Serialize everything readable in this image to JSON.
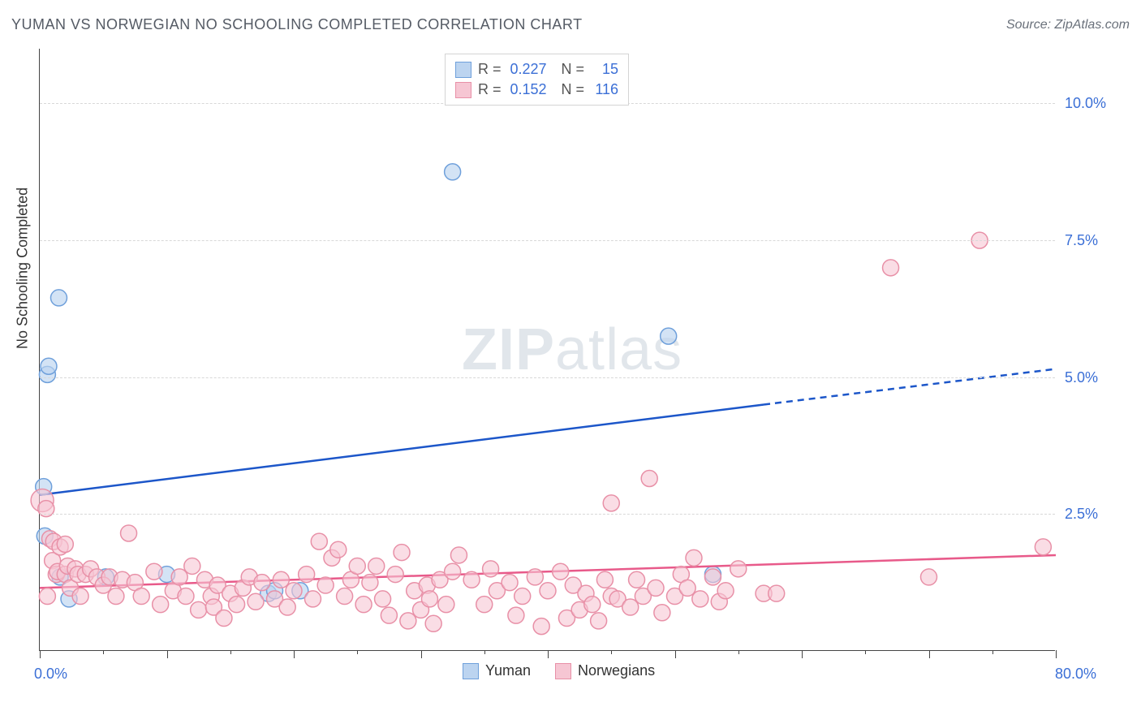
{
  "title": "YUMAN VS NORWEGIAN NO SCHOOLING COMPLETED CORRELATION CHART",
  "source": "Source: ZipAtlas.com",
  "y_axis_label": "No Schooling Completed",
  "watermark_a": "ZIP",
  "watermark_b": "atlas",
  "chart": {
    "type": "scatter",
    "xlim": [
      0,
      80
    ],
    "ylim": [
      0,
      11
    ],
    "x_label_min": "0.0%",
    "x_label_max": "80.0%",
    "y_grid": [
      {
        "value": 2.5,
        "label": "2.5%"
      },
      {
        "value": 5.0,
        "label": "5.0%"
      },
      {
        "value": 7.5,
        "label": "7.5%"
      },
      {
        "value": 10.0,
        "label": "10.0%"
      }
    ],
    "x_ticks": [
      0,
      5,
      10,
      15,
      20,
      25,
      30,
      35,
      40,
      45,
      50,
      55,
      60,
      65,
      70,
      75,
      80
    ],
    "x_major": [
      0,
      10,
      20,
      30,
      40,
      50,
      60,
      70,
      80
    ],
    "background_color": "#ffffff",
    "grid_color": "#d8d8d8",
    "axis_text_color": "#3b6fd6",
    "marker_radius": 10,
    "marker_stroke_width": 1.5,
    "trend_line_width": 2.5,
    "series": [
      {
        "name": "Yuman",
        "fill": "#bcd4f0",
        "stroke": "#6fa0db",
        "fill_opacity": 0.65,
        "trend_color": "#1c56c9",
        "trend": {
          "x1": 0,
          "y1": 2.85,
          "x2_solid": 57,
          "y2_solid": 4.5,
          "x2": 80,
          "y2": 5.15
        },
        "points": [
          {
            "x": 0.3,
            "y": 3.0
          },
          {
            "x": 0.4,
            "y": 2.1
          },
          {
            "x": 0.6,
            "y": 5.05
          },
          {
            "x": 0.7,
            "y": 5.2
          },
          {
            "x": 1.5,
            "y": 6.45
          },
          {
            "x": 1.6,
            "y": 1.35
          },
          {
            "x": 2.3,
            "y": 0.95
          },
          {
            "x": 5.2,
            "y": 1.35
          },
          {
            "x": 10.0,
            "y": 1.4
          },
          {
            "x": 18.0,
            "y": 1.05
          },
          {
            "x": 18.5,
            "y": 1.1
          },
          {
            "x": 20.5,
            "y": 1.1
          },
          {
            "x": 32.5,
            "y": 8.75
          },
          {
            "x": 49.5,
            "y": 5.75
          },
          {
            "x": 53.0,
            "y": 1.4
          }
        ],
        "stats": {
          "R_label": "R =",
          "R": "0.227",
          "N_label": "N =",
          "N": "15"
        }
      },
      {
        "name": "Norwegians",
        "fill": "#f6c6d3",
        "stroke": "#e890a7",
        "fill_opacity": 0.6,
        "trend_color": "#e85a8a",
        "trend": {
          "x1": 0,
          "y1": 1.15,
          "x2_solid": 80,
          "y2_solid": 1.75,
          "x2": 80,
          "y2": 1.75
        },
        "points": [
          {
            "x": 0.2,
            "y": 2.75,
            "r": 14
          },
          {
            "x": 0.5,
            "y": 2.6
          },
          {
            "x": 0.6,
            "y": 1.0
          },
          {
            "x": 0.8,
            "y": 2.05
          },
          {
            "x": 1.0,
            "y": 1.65
          },
          {
            "x": 1.1,
            "y": 2.0
          },
          {
            "x": 1.3,
            "y": 1.4
          },
          {
            "x": 1.4,
            "y": 1.45
          },
          {
            "x": 1.6,
            "y": 1.9
          },
          {
            "x": 2.0,
            "y": 1.4
          },
          {
            "x": 2.0,
            "y": 1.95
          },
          {
            "x": 2.2,
            "y": 1.55
          },
          {
            "x": 2.4,
            "y": 1.15
          },
          {
            "x": 2.8,
            "y": 1.5
          },
          {
            "x": 3.0,
            "y": 1.4
          },
          {
            "x": 3.2,
            "y": 1.0
          },
          {
            "x": 3.6,
            "y": 1.4
          },
          {
            "x": 4.0,
            "y": 1.5
          },
          {
            "x": 4.5,
            "y": 1.35
          },
          {
            "x": 5.0,
            "y": 1.2
          },
          {
            "x": 5.5,
            "y": 1.35
          },
          {
            "x": 6.0,
            "y": 1.0
          },
          {
            "x": 6.5,
            "y": 1.3
          },
          {
            "x": 7.0,
            "y": 2.15
          },
          {
            "x": 7.5,
            "y": 1.25
          },
          {
            "x": 8.0,
            "y": 1.0
          },
          {
            "x": 9.0,
            "y": 1.45
          },
          {
            "x": 9.5,
            "y": 0.85
          },
          {
            "x": 10.5,
            "y": 1.1
          },
          {
            "x": 11.0,
            "y": 1.35
          },
          {
            "x": 11.5,
            "y": 1.0
          },
          {
            "x": 12.0,
            "y": 1.55
          },
          {
            "x": 12.5,
            "y": 0.75
          },
          {
            "x": 13.0,
            "y": 1.3
          },
          {
            "x": 13.5,
            "y": 1.0
          },
          {
            "x": 13.7,
            "y": 0.8
          },
          {
            "x": 14.0,
            "y": 1.2
          },
          {
            "x": 14.5,
            "y": 0.6
          },
          {
            "x": 15.0,
            "y": 1.05
          },
          {
            "x": 15.5,
            "y": 0.85
          },
          {
            "x": 16.0,
            "y": 1.15
          },
          {
            "x": 16.5,
            "y": 1.35
          },
          {
            "x": 17.0,
            "y": 0.9
          },
          {
            "x": 17.5,
            "y": 1.25
          },
          {
            "x": 18.5,
            "y": 0.95
          },
          {
            "x": 19.0,
            "y": 1.3
          },
          {
            "x": 19.5,
            "y": 0.8
          },
          {
            "x": 20.0,
            "y": 1.1
          },
          {
            "x": 21.0,
            "y": 1.4
          },
          {
            "x": 21.5,
            "y": 0.95
          },
          {
            "x": 22.0,
            "y": 2.0
          },
          {
            "x": 22.5,
            "y": 1.2
          },
          {
            "x": 23.0,
            "y": 1.7
          },
          {
            "x": 23.5,
            "y": 1.85
          },
          {
            "x": 24.0,
            "y": 1.0
          },
          {
            "x": 24.5,
            "y": 1.3
          },
          {
            "x": 25.0,
            "y": 1.55
          },
          {
            "x": 25.5,
            "y": 0.85
          },
          {
            "x": 26.0,
            "y": 1.25
          },
          {
            "x": 26.5,
            "y": 1.55
          },
          {
            "x": 27.0,
            "y": 0.95
          },
          {
            "x": 27.5,
            "y": 0.65
          },
          {
            "x": 28.0,
            "y": 1.4
          },
          {
            "x": 28.5,
            "y": 1.8
          },
          {
            "x": 29.0,
            "y": 0.55
          },
          {
            "x": 29.5,
            "y": 1.1
          },
          {
            "x": 30.0,
            "y": 0.75
          },
          {
            "x": 30.5,
            "y": 1.2
          },
          {
            "x": 30.7,
            "y": 0.95
          },
          {
            "x": 31.0,
            "y": 0.5
          },
          {
            "x": 31.5,
            "y": 1.3
          },
          {
            "x": 32.0,
            "y": 0.85
          },
          {
            "x": 32.5,
            "y": 1.45
          },
          {
            "x": 33.0,
            "y": 1.75
          },
          {
            "x": 34.0,
            "y": 1.3
          },
          {
            "x": 35.0,
            "y": 0.85
          },
          {
            "x": 35.5,
            "y": 1.5
          },
          {
            "x": 36.0,
            "y": 1.1
          },
          {
            "x": 37.0,
            "y": 1.25
          },
          {
            "x": 37.5,
            "y": 0.65
          },
          {
            "x": 38.0,
            "y": 1.0
          },
          {
            "x": 39.0,
            "y": 1.35
          },
          {
            "x": 39.5,
            "y": 0.45
          },
          {
            "x": 40.0,
            "y": 1.1
          },
          {
            "x": 41.0,
            "y": 1.45
          },
          {
            "x": 41.5,
            "y": 0.6
          },
          {
            "x": 42.0,
            "y": 1.2
          },
          {
            "x": 42.5,
            "y": 0.75
          },
          {
            "x": 43.0,
            "y": 1.05
          },
          {
            "x": 43.5,
            "y": 0.85
          },
          {
            "x": 44.0,
            "y": 0.55
          },
          {
            "x": 44.5,
            "y": 1.3
          },
          {
            "x": 45.0,
            "y": 1.0
          },
          {
            "x": 45.0,
            "y": 2.7
          },
          {
            "x": 45.5,
            "y": 0.95
          },
          {
            "x": 46.5,
            "y": 0.8
          },
          {
            "x": 47.0,
            "y": 1.3
          },
          {
            "x": 47.5,
            "y": 1.0
          },
          {
            "x": 48.0,
            "y": 3.15
          },
          {
            "x": 48.5,
            "y": 1.15
          },
          {
            "x": 49.0,
            "y": 0.7
          },
          {
            "x": 50.0,
            "y": 1.0
          },
          {
            "x": 50.5,
            "y": 1.4
          },
          {
            "x": 51.0,
            "y": 1.15
          },
          {
            "x": 51.5,
            "y": 1.7
          },
          {
            "x": 52.0,
            "y": 0.95
          },
          {
            "x": 53.0,
            "y": 1.35
          },
          {
            "x": 53.5,
            "y": 0.9
          },
          {
            "x": 54.0,
            "y": 1.1
          },
          {
            "x": 55.0,
            "y": 1.5
          },
          {
            "x": 57.0,
            "y": 1.05
          },
          {
            "x": 58.0,
            "y": 1.05
          },
          {
            "x": 67.0,
            "y": 7.0
          },
          {
            "x": 70.0,
            "y": 1.35
          },
          {
            "x": 74.0,
            "y": 7.5
          },
          {
            "x": 79.0,
            "y": 1.9
          }
        ],
        "stats": {
          "R_label": "R =",
          "R": "0.152",
          "N_label": "N =",
          "N": "116"
        }
      }
    ],
    "legend_bottom": [
      {
        "swatch_fill": "#bcd4f0",
        "swatch_stroke": "#6fa0db",
        "label": "Yuman"
      },
      {
        "swatch_fill": "#f6c6d3",
        "swatch_stroke": "#e890a7",
        "label": "Norwegians"
      }
    ]
  }
}
